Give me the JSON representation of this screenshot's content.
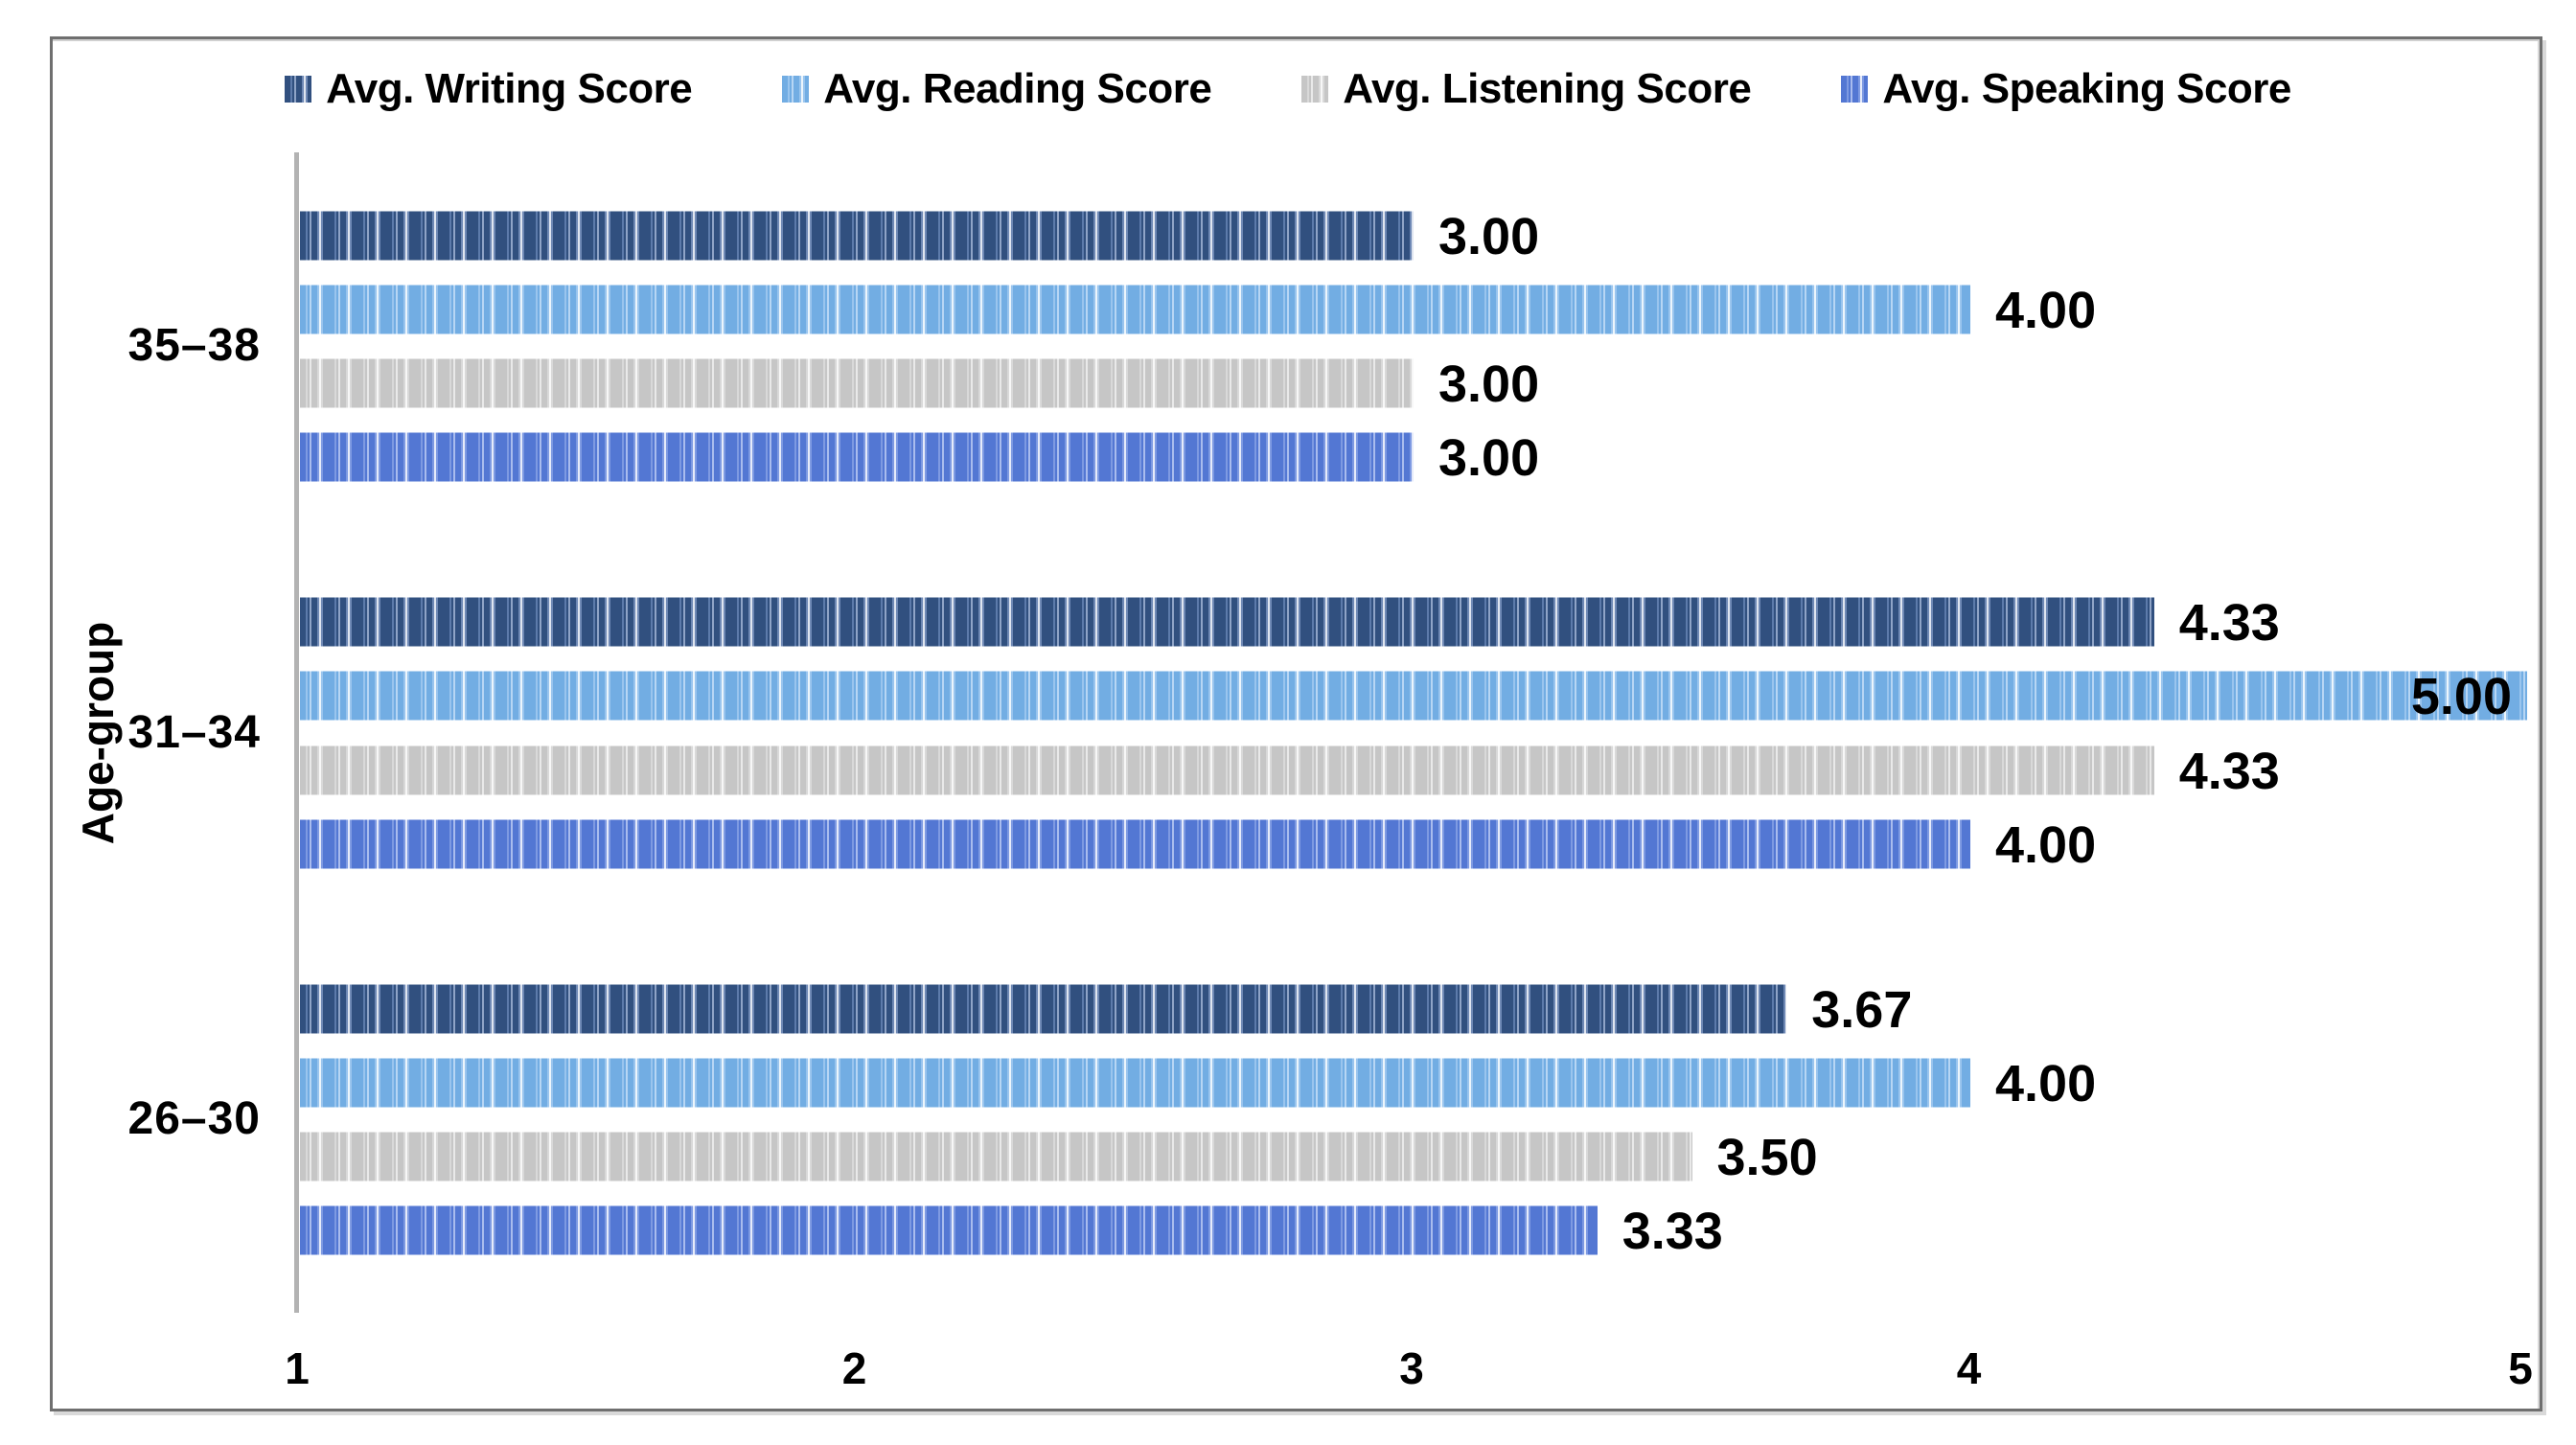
{
  "chart_data": {
    "type": "bar",
    "orientation": "horizontal",
    "title": "",
    "xlabel": "",
    "ylabel": "Age-group",
    "xlim": [
      1,
      5
    ],
    "xticks": [
      "1",
      "2",
      "3",
      "4",
      "5"
    ],
    "grid": false,
    "legend_position": "top",
    "categories": [
      "35–38",
      "31–34",
      "26–30"
    ],
    "series": [
      {
        "name": "Avg. Writing Score",
        "slug": "writing",
        "color": "#31507f",
        "values": [
          3.0,
          4.33,
          3.67
        ],
        "labels": [
          "3.00",
          "4.33",
          "3.67"
        ]
      },
      {
        "name": "Avg. Reading Score",
        "slug": "reading",
        "color": "#72ade3",
        "values": [
          4.0,
          5.0,
          4.0
        ],
        "labels": [
          "4.00",
          "5.00",
          "4.00"
        ]
      },
      {
        "name": "Avg. Listening Score",
        "slug": "listening",
        "color": "#c6c6c6",
        "values": [
          3.0,
          4.33,
          3.5
        ],
        "labels": [
          "3.00",
          "4.33",
          "3.50"
        ]
      },
      {
        "name": "Avg. Speaking Score",
        "slug": "speaking",
        "color": "#5377d3",
        "values": [
          3.0,
          4.0,
          3.33
        ],
        "labels": [
          "3.00",
          "4.00",
          "3.33"
        ]
      }
    ]
  }
}
